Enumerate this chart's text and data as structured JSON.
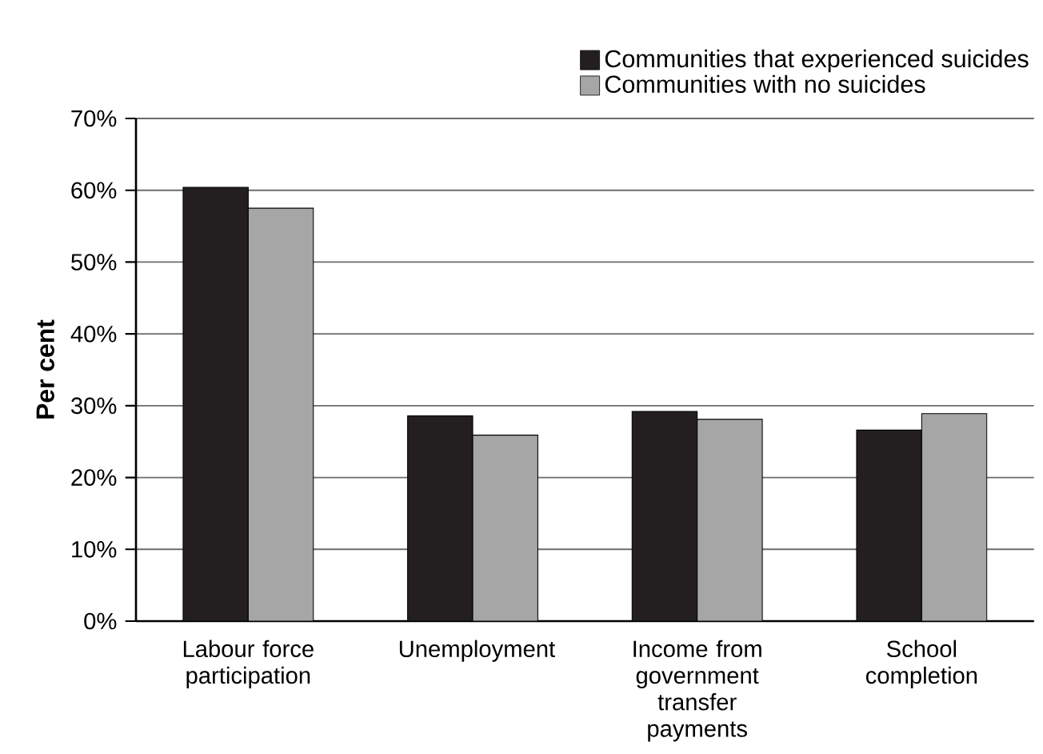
{
  "chart_data": {
    "type": "bar",
    "ylabel": "Per cent",
    "categories": [
      "Labour force participation",
      "Unemployment",
      "Income from government transfer payments",
      "School completion"
    ],
    "series": [
      {
        "name": "Communities that experienced suicides",
        "color": "#231f20",
        "values": [
          60.4,
          28.6,
          29.2,
          26.6
        ]
      },
      {
        "name": "Communities with no suicides",
        "color": "#a6a6a6",
        "values": [
          57.5,
          25.9,
          28.1,
          28.9
        ]
      }
    ],
    "ylim": [
      0,
      70
    ],
    "yticks": [
      {
        "value": 0,
        "label": "0%"
      },
      {
        "value": 10,
        "label": "10%"
      },
      {
        "value": 20,
        "label": "20%"
      },
      {
        "value": 30,
        "label": "30%"
      },
      {
        "value": 40,
        "label": "40%"
      },
      {
        "value": 50,
        "label": "50%"
      },
      {
        "value": 60,
        "label": "60%"
      },
      {
        "value": 70,
        "label": "70%"
      }
    ],
    "grid": "y",
    "legend": "top right"
  }
}
